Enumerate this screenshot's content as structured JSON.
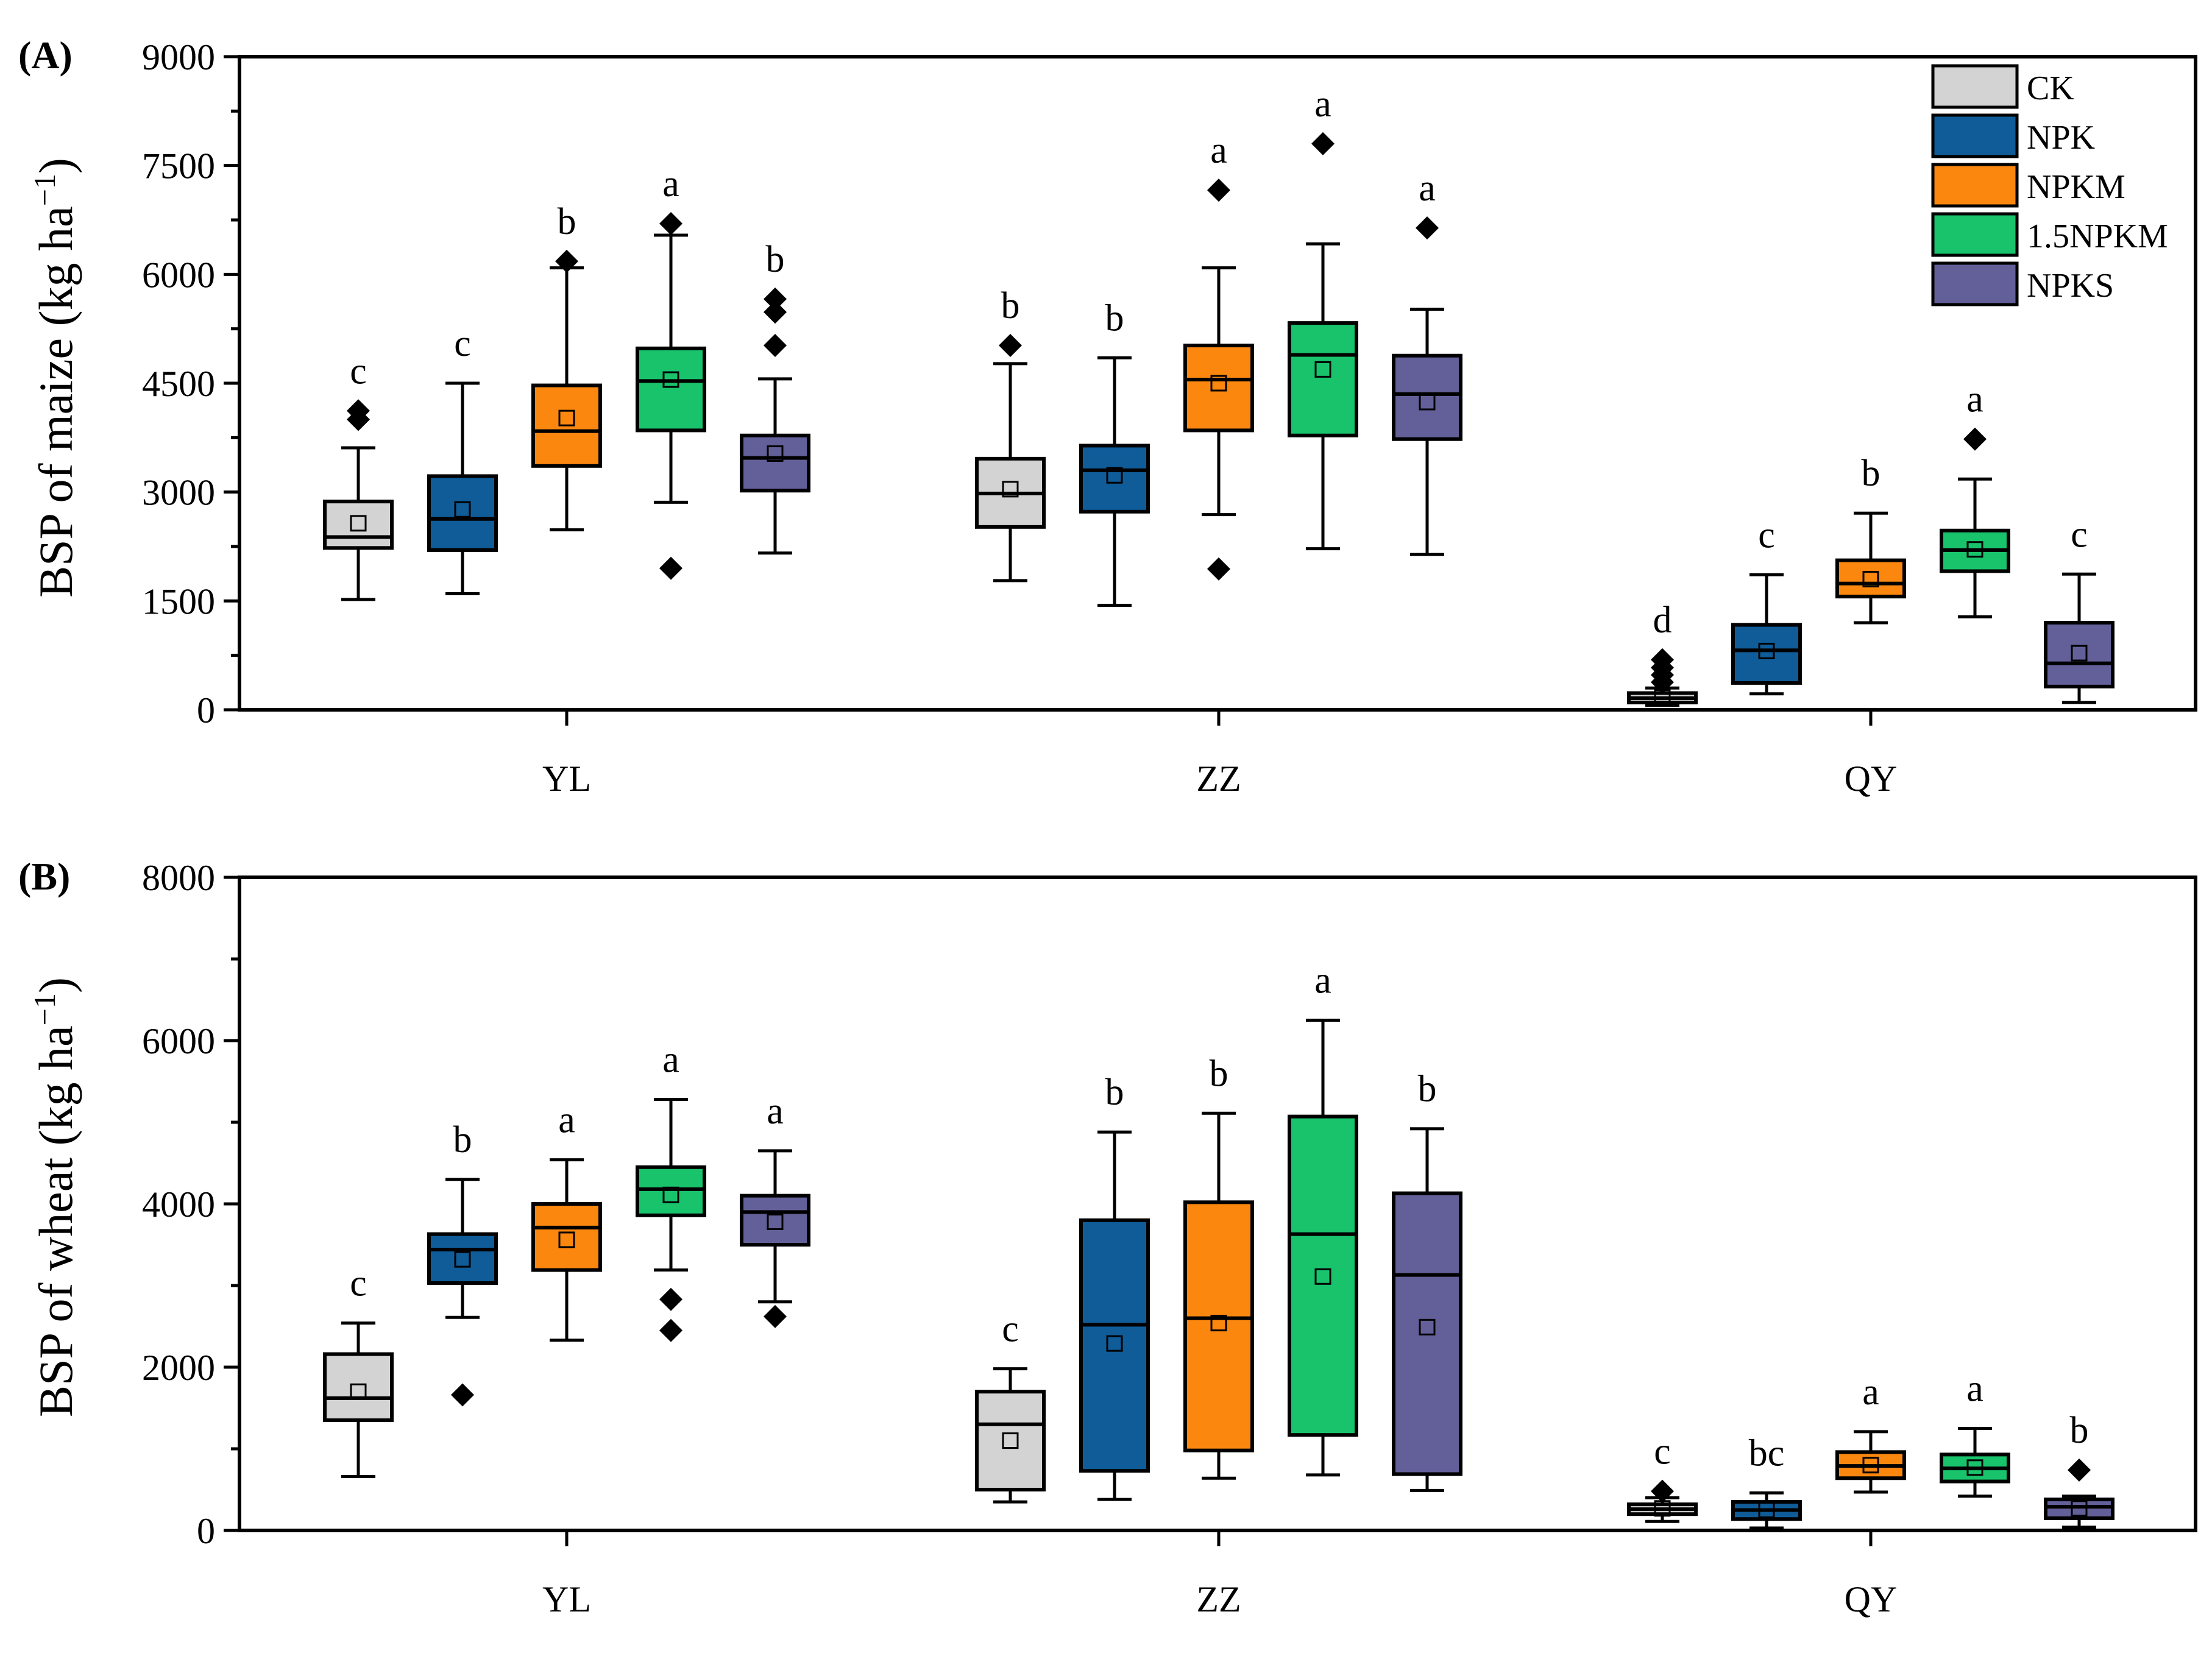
{
  "chart_data": [
    {
      "type": "box",
      "panel_label": "(A)",
      "ylabel_main": "BSP of maize (kg ha",
      "ylabel_sup": "−1",
      "ylabel_close": ")",
      "ylim": [
        0,
        9000
      ],
      "yticks": [
        0,
        1500,
        3000,
        4500,
        6000,
        7500,
        9000
      ],
      "categories": [
        "YL",
        "ZZ",
        "QY"
      ],
      "series_names": [
        "CK",
        "NPK",
        "NPKM",
        "1.5NPKM",
        "NPKS"
      ],
      "groups": [
        {
          "site": "YL",
          "boxes": [
            {
              "series": "CK",
              "whisker_low": 1520,
              "q1": 2230,
              "median": 2380,
              "q3": 2870,
              "whisker_high": 3610,
              "mean": 2570,
              "outliers": [
                4000,
                4120
              ],
              "letter": "c"
            },
            {
              "series": "NPK",
              "whisker_low": 1600,
              "q1": 2200,
              "median": 2630,
              "q3": 3220,
              "whisker_high": 4500,
              "mean": 2760,
              "outliers": [],
              "letter": "c"
            },
            {
              "series": "NPKM",
              "whisker_low": 2480,
              "q1": 3360,
              "median": 3840,
              "q3": 4470,
              "whisker_high": 6090,
              "mean": 4020,
              "outliers": [
                6180
              ],
              "letter": "b"
            },
            {
              "series": "1.5NPKM",
              "whisker_low": 2860,
              "q1": 3850,
              "median": 4530,
              "q3": 4980,
              "whisker_high": 6540,
              "mean": 4550,
              "outliers": [
                6700,
                1950
              ],
              "letter": "a"
            },
            {
              "series": "NPKS",
              "whisker_low": 2160,
              "q1": 3020,
              "median": 3470,
              "q3": 3780,
              "whisker_high": 4560,
              "mean": 3530,
              "outliers": [
                5020,
                5480,
                5660
              ],
              "letter": "b"
            }
          ]
        },
        {
          "site": "ZZ",
          "boxes": [
            {
              "series": "CK",
              "whisker_low": 1780,
              "q1": 2520,
              "median": 2980,
              "q3": 3460,
              "whisker_high": 4770,
              "mean": 3040,
              "outliers": [
                5020
              ],
              "letter": "b"
            },
            {
              "series": "NPK",
              "whisker_low": 1440,
              "q1": 2730,
              "median": 3300,
              "q3": 3640,
              "whisker_high": 4850,
              "mean": 3230,
              "outliers": [],
              "letter": "b"
            },
            {
              "series": "NPKM",
              "whisker_low": 2690,
              "q1": 3850,
              "median": 4550,
              "q3": 5020,
              "whisker_high": 6090,
              "mean": 4500,
              "outliers": [
                7160,
                1940
              ],
              "letter": "a"
            },
            {
              "series": "1.5NPKM",
              "whisker_low": 2220,
              "q1": 3780,
              "median": 4890,
              "q3": 5330,
              "whisker_high": 6420,
              "mean": 4690,
              "outliers": [
                7800
              ],
              "letter": "a"
            },
            {
              "series": "NPKS",
              "whisker_low": 2140,
              "q1": 3730,
              "median": 4350,
              "q3": 4880,
              "whisker_high": 5520,
              "mean": 4240,
              "outliers": [
                6640
              ],
              "letter": "a"
            }
          ]
        },
        {
          "site": "QY",
          "boxes": [
            {
              "series": "CK",
              "whisker_low": 60,
              "q1": 100,
              "median": 160,
              "q3": 230,
              "whisker_high": 300,
              "mean": 170,
              "outliers": [
                380,
                480,
                580,
                690
              ],
              "letter": "d"
            },
            {
              "series": "NPK",
              "whisker_low": 220,
              "q1": 370,
              "median": 820,
              "q3": 1170,
              "whisker_high": 1860,
              "mean": 810,
              "outliers": [],
              "letter": "c"
            },
            {
              "series": "NPKM",
              "whisker_low": 1200,
              "q1": 1560,
              "median": 1740,
              "q3": 2060,
              "whisker_high": 2710,
              "mean": 1800,
              "outliers": [],
              "letter": "b"
            },
            {
              "series": "1.5NPKM",
              "whisker_low": 1280,
              "q1": 1910,
              "median": 2200,
              "q3": 2470,
              "whisker_high": 3180,
              "mean": 2210,
              "outliers": [
                3730
              ],
              "letter": "a"
            },
            {
              "series": "NPKS",
              "whisker_low": 100,
              "q1": 320,
              "median": 640,
              "q3": 1200,
              "whisker_high": 1870,
              "mean": 780,
              "outliers": [],
              "letter": "c"
            }
          ]
        }
      ]
    },
    {
      "type": "box",
      "panel_label": "(B)",
      "ylabel_main": "BSP of wheat (kg ha",
      "ylabel_sup": "−1",
      "ylabel_close": ")",
      "ylim": [
        0,
        8000
      ],
      "yticks": [
        0,
        2000,
        4000,
        6000,
        8000
      ],
      "categories": [
        "YL",
        "ZZ",
        "QY"
      ],
      "series_names": [
        "CK",
        "NPK",
        "NPKM",
        "1.5NPKM",
        "NPKS"
      ],
      "groups": [
        {
          "site": "YL",
          "boxes": [
            {
              "series": "CK",
              "whisker_low": 660,
              "q1": 1350,
              "median": 1620,
              "q3": 2160,
              "whisker_high": 2540,
              "mean": 1700,
              "outliers": [],
              "letter": "c"
            },
            {
              "series": "NPK",
              "whisker_low": 2610,
              "q1": 3030,
              "median": 3440,
              "q3": 3630,
              "whisker_high": 4300,
              "mean": 3320,
              "outliers": [
                1660
              ],
              "letter": "b"
            },
            {
              "series": "NPKM",
              "whisker_low": 2330,
              "q1": 3190,
              "median": 3710,
              "q3": 4000,
              "whisker_high": 4540,
              "mean": 3560,
              "outliers": [],
              "letter": "a"
            },
            {
              "series": "1.5NPKM",
              "whisker_low": 3190,
              "q1": 3860,
              "median": 4180,
              "q3": 4450,
              "whisker_high": 5280,
              "mean": 4110,
              "outliers": [
                2830,
                2450
              ],
              "letter": "a"
            },
            {
              "series": "NPKS",
              "whisker_low": 2800,
              "q1": 3500,
              "median": 3900,
              "q3": 4100,
              "whisker_high": 4650,
              "mean": 3780,
              "outliers": [
                2620
              ],
              "letter": "a"
            }
          ]
        },
        {
          "site": "ZZ",
          "boxes": [
            {
              "series": "CK",
              "whisker_low": 350,
              "q1": 500,
              "median": 1300,
              "q3": 1700,
              "whisker_high": 1980,
              "mean": 1100,
              "outliers": [],
              "letter": "c"
            },
            {
              "series": "NPK",
              "whisker_low": 380,
              "q1": 730,
              "median": 2520,
              "q3": 3800,
              "whisker_high": 4880,
              "mean": 2290,
              "outliers": [],
              "letter": "b"
            },
            {
              "series": "NPKM",
              "whisker_low": 640,
              "q1": 980,
              "median": 2600,
              "q3": 4020,
              "whisker_high": 5110,
              "mean": 2540,
              "outliers": [],
              "letter": "b"
            },
            {
              "series": "1.5NPKM",
              "whisker_low": 680,
              "q1": 1170,
              "median": 3630,
              "q3": 5070,
              "whisker_high": 6250,
              "mean": 3110,
              "outliers": [],
              "letter": "a"
            },
            {
              "series": "NPKS",
              "whisker_low": 490,
              "q1": 690,
              "median": 3130,
              "q3": 4130,
              "whisker_high": 4920,
              "mean": 2490,
              "outliers": [],
              "letter": "b"
            }
          ]
        },
        {
          "site": "QY",
          "boxes": [
            {
              "series": "CK",
              "whisker_low": 110,
              "q1": 200,
              "median": 260,
              "q3": 320,
              "whisker_high": 400,
              "mean": 270,
              "outliers": [
                480
              ],
              "letter": "c"
            },
            {
              "series": "NPK",
              "whisker_low": 30,
              "q1": 140,
              "median": 250,
              "q3": 350,
              "whisker_high": 460,
              "mean": 250,
              "outliers": [],
              "letter": "bc"
            },
            {
              "series": "NPKM",
              "whisker_low": 470,
              "q1": 640,
              "median": 790,
              "q3": 960,
              "whisker_high": 1210,
              "mean": 800,
              "outliers": [],
              "letter": "a"
            },
            {
              "series": "1.5NPKM",
              "whisker_low": 420,
              "q1": 600,
              "median": 760,
              "q3": 930,
              "whisker_high": 1250,
              "mean": 770,
              "outliers": [],
              "letter": "a"
            },
            {
              "series": "NPKS",
              "whisker_low": 40,
              "q1": 150,
              "median": 290,
              "q3": 380,
              "whisker_high": 420,
              "mean": 270,
              "outliers": [
                740
              ],
              "letter": "b"
            }
          ]
        }
      ]
    }
  ],
  "legend": [
    {
      "label": "CK",
      "color": "#d3d3d3"
    },
    {
      "label": "NPK",
      "color": "#0f5c99"
    },
    {
      "label": "NPKM",
      "color": "#fb870f"
    },
    {
      "label": "1.5NPKM",
      "color": "#19c36c"
    },
    {
      "label": "NPKS",
      "color": "#636099"
    }
  ]
}
